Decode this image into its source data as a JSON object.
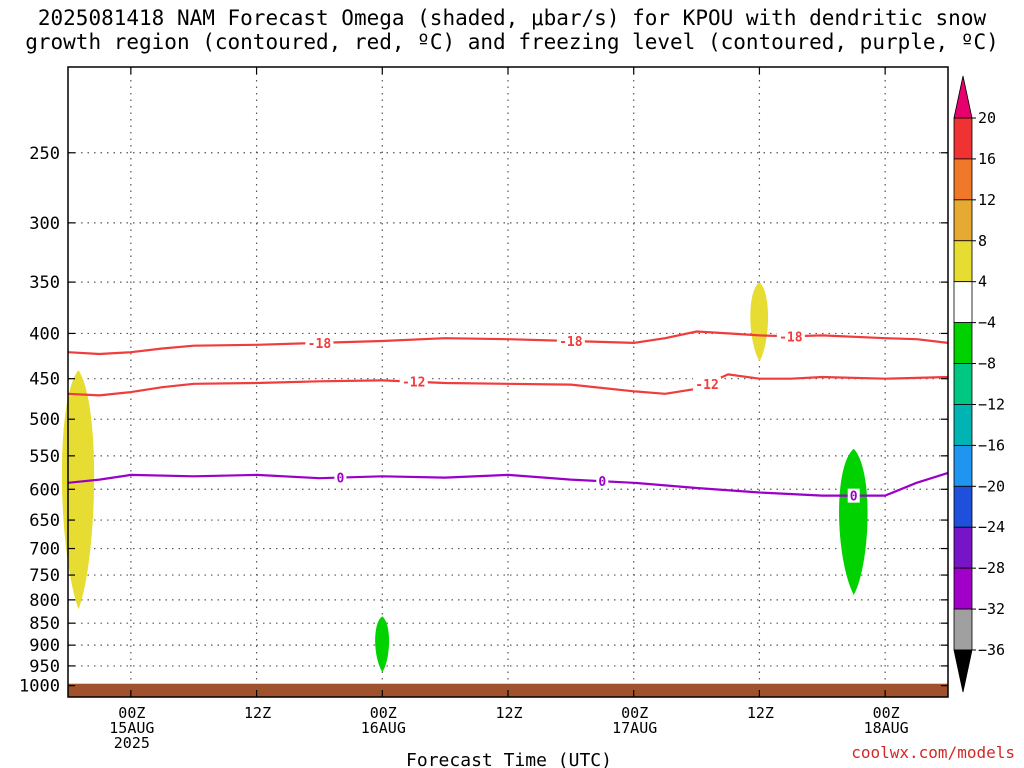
{
  "title": {
    "line1": "2025081418 NAM Forecast Omega (shaded, μbar/s) for KPOU with dendritic snow",
    "line2": "growth region (contoured, red, ºC) and freezing level (contoured, purple, ºC)"
  },
  "xlabel": "Forecast Time (UTC)",
  "credit": "coolwx.com/models",
  "colors": {
    "dgz_contour": "#ff3c3c",
    "freezing_contour": "#9a00c8",
    "terrain": "#a0522d",
    "omega_pos_4_8": "#e6dc32",
    "omega_neg_4_8": "#00d200"
  },
  "chart_data": {
    "type": "heatmap",
    "title": "2025081418 NAM Forecast Omega (shaded, μbar/s) for KPOU with dendritic snow growth region (contoured, red, ºC) and freezing level (contoured, purple, ºC)",
    "xlabel": "Forecast Time (UTC)",
    "ylabel": "",
    "y_scale": "log-pressure",
    "ylim": [
      1030,
      200
    ],
    "xlim": [
      "2025-08-14 18Z",
      "2025-08-18 06Z"
    ],
    "grid": true,
    "y_ticks": [
      250,
      300,
      350,
      400,
      450,
      500,
      550,
      600,
      650,
      700,
      750,
      800,
      850,
      900,
      950,
      1000
    ],
    "x_ticks": [
      {
        "time": "2025-08-15 00Z",
        "label1": "00Z",
        "label2": "15AUG",
        "label3": "2025"
      },
      {
        "time": "2025-08-15 12Z",
        "label1": "12Z",
        "label2": "",
        "label3": ""
      },
      {
        "time": "2025-08-16 00Z",
        "label1": "00Z",
        "label2": "16AUG",
        "label3": ""
      },
      {
        "time": "2025-08-16 12Z",
        "label1": "12Z",
        "label2": "",
        "label3": ""
      },
      {
        "time": "2025-08-17 00Z",
        "label1": "00Z",
        "label2": "17AUG",
        "label3": ""
      },
      {
        "time": "2025-08-17 12Z",
        "label1": "12Z",
        "label2": "",
        "label3": ""
      },
      {
        "time": "2025-08-18 00Z",
        "label1": "00Z",
        "label2": "18AUG",
        "label3": ""
      }
    ],
    "colorbar": {
      "levels": [
        "20",
        "16",
        "12",
        "8",
        "4",
        "−4",
        "−8",
        "−12",
        "−16",
        "−20",
        "−24",
        "−28",
        "−32",
        "−36"
      ],
      "colors": [
        "#f03232",
        "#f07828",
        "#e6aa32",
        "#e6dc32",
        "#ffffff",
        "#00d200",
        "#00c882",
        "#00b4b4",
        "#1e96f0",
        "#1e50dc",
        "#7814c8",
        "#a000c8",
        "#a0a0a0"
      ],
      "top_extend_color": "#e6006e",
      "bottom_extend_color": "#000000"
    },
    "series": [
      {
        "name": "-18",
        "color": "#f03c3c",
        "label_times": [
          "2025-08-15 18Z",
          "2025-08-16 18Z",
          "2025-08-17 15Z"
        ],
        "points": [
          [
            "2025-08-14 18Z",
            420
          ],
          [
            "2025-08-14 21Z",
            422
          ],
          [
            "2025-08-15 00Z",
            420
          ],
          [
            "2025-08-15 03Z",
            416
          ],
          [
            "2025-08-15 06Z",
            413
          ],
          [
            "2025-08-15 12Z",
            412
          ],
          [
            "2025-08-15 18Z",
            410
          ],
          [
            "2025-08-16 00Z",
            408
          ],
          [
            "2025-08-16 06Z",
            405
          ],
          [
            "2025-08-16 12Z",
            406
          ],
          [
            "2025-08-16 18Z",
            408
          ],
          [
            "2025-08-17 00Z",
            410
          ],
          [
            "2025-08-17 03Z",
            405
          ],
          [
            "2025-08-17 06Z",
            398
          ],
          [
            "2025-08-17 09Z",
            400
          ],
          [
            "2025-08-17 12Z",
            402
          ],
          [
            "2025-08-17 15Z",
            403
          ],
          [
            "2025-08-17 18Z",
            402
          ],
          [
            "2025-08-18 00Z",
            405
          ],
          [
            "2025-08-18 03Z",
            406
          ],
          [
            "2025-08-18 06Z",
            410
          ]
        ]
      },
      {
        "name": "-12",
        "color": "#f03c3c",
        "label_times": [
          "2025-08-16 03Z",
          "2025-08-17 07Z"
        ],
        "points": [
          [
            "2025-08-14 18Z",
            468
          ],
          [
            "2025-08-14 21Z",
            470
          ],
          [
            "2025-08-15 00Z",
            466
          ],
          [
            "2025-08-15 03Z",
            460
          ],
          [
            "2025-08-15 06Z",
            456
          ],
          [
            "2025-08-15 12Z",
            455
          ],
          [
            "2025-08-15 18Z",
            453
          ],
          [
            "2025-08-16 00Z",
            452
          ],
          [
            "2025-08-16 06Z",
            455
          ],
          [
            "2025-08-16 12Z",
            456
          ],
          [
            "2025-08-16 18Z",
            457
          ],
          [
            "2025-08-17 00Z",
            465
          ],
          [
            "2025-08-17 03Z",
            468
          ],
          [
            "2025-08-17 06Z",
            462
          ],
          [
            "2025-08-17 09Z",
            445
          ],
          [
            "2025-08-17 12Z",
            450
          ],
          [
            "2025-08-17 15Z",
            450
          ],
          [
            "2025-08-17 18Z",
            448
          ],
          [
            "2025-08-18 00Z",
            450
          ],
          [
            "2025-08-18 03Z",
            449
          ],
          [
            "2025-08-18 06Z",
            448
          ]
        ]
      },
      {
        "name": "0",
        "color": "#9a00c8",
        "label_times": [
          "2025-08-15 20Z",
          "2025-08-16 21Z",
          "2025-08-17 21Z"
        ],
        "points": [
          [
            "2025-08-14 18Z",
            590
          ],
          [
            "2025-08-14 21Z",
            585
          ],
          [
            "2025-08-15 00Z",
            578
          ],
          [
            "2025-08-15 06Z",
            580
          ],
          [
            "2025-08-15 12Z",
            578
          ],
          [
            "2025-08-15 18Z",
            583
          ],
          [
            "2025-08-16 00Z",
            580
          ],
          [
            "2025-08-16 06Z",
            582
          ],
          [
            "2025-08-16 12Z",
            578
          ],
          [
            "2025-08-16 18Z",
            585
          ],
          [
            "2025-08-17 00Z",
            590
          ],
          [
            "2025-08-17 06Z",
            598
          ],
          [
            "2025-08-17 12Z",
            605
          ],
          [
            "2025-08-17 18Z",
            610
          ],
          [
            "2025-08-18 00Z",
            610
          ],
          [
            "2025-08-18 03Z",
            590
          ],
          [
            "2025-08-18 06Z",
            575
          ]
        ]
      }
    ],
    "omega_regions": [
      {
        "value_range": "4 to 8",
        "color": "#e6dc32",
        "time": "2025-08-14 19Z",
        "top_hPa": 440,
        "bottom_hPa": 820
      },
      {
        "value_range": "4 to 8",
        "color": "#e6dc32",
        "time": "2025-08-17 12Z",
        "top_hPa": 350,
        "bottom_hPa": 430
      },
      {
        "value_range": "-8 to -4",
        "color": "#00d200",
        "time": "2025-08-16 00Z",
        "top_hPa": 835,
        "bottom_hPa": 965
      },
      {
        "value_range": "-8 to -4",
        "color": "#00d200",
        "time": "2025-08-17 21Z",
        "top_hPa": 540,
        "bottom_hPa": 790
      }
    ]
  }
}
